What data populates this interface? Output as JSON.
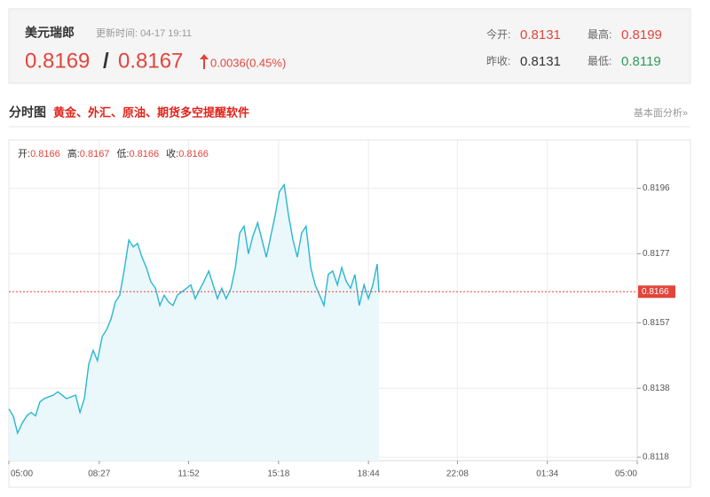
{
  "header": {
    "symbol": "美元瑞郎",
    "update_time": "更新时间: 04-17 19:11",
    "bid": 0.8169,
    "separator": "/",
    "ask": 0.8167,
    "change": "0.0036(0.45%)",
    "open_label": "今开:",
    "open": 0.8131,
    "high_label": "最高:",
    "high": 0.8199,
    "prev_close_label": "昨收:",
    "prev_close": 0.8131,
    "low_label": "最低:",
    "low": 0.8119
  },
  "section": {
    "title": "分时图",
    "promo": "黄金、外汇、原油、期货多空提醒软件",
    "link": "基本面分析»"
  },
  "chart_data": {
    "type": "line",
    "ohlc": [
      {
        "label": "开:",
        "value": 0.8166
      },
      {
        "label": "高:",
        "value": 0.8167
      },
      {
        "label": "低:",
        "value": 0.8166
      },
      {
        "label": "收:",
        "value": 0.8166
      }
    ],
    "x": [
      0,
      10,
      20,
      31,
      41,
      51,
      61,
      71,
      81,
      102,
      112,
      132,
      153,
      163,
      173,
      183,
      193,
      203,
      214,
      224,
      234,
      244,
      254,
      264,
      275,
      285,
      295,
      305,
      315,
      325,
      336,
      346,
      356,
      366,
      376,
      386,
      407,
      417,
      427,
      447,
      458,
      468,
      478,
      488,
      498,
      509,
      519,
      529,
      539,
      549,
      559,
      570,
      580,
      590,
      600,
      610,
      620,
      631,
      641,
      651,
      661,
      671,
      681,
      692,
      702,
      712,
      722,
      732,
      742,
      753,
      763,
      773,
      783,
      793,
      803,
      814,
      824,
      834,
      844,
      848
    ],
    "series": [
      {
        "color": "#29b6d0",
        "values": [
          0.8132,
          0.813,
          0.8125,
          0.8128,
          0.813,
          0.8131,
          0.813,
          0.8134,
          0.8135,
          0.8136,
          0.8137,
          0.8135,
          0.8136,
          0.8131,
          0.8135,
          0.8145,
          0.8149,
          0.8146,
          0.8153,
          0.8155,
          0.8158,
          0.8163,
          0.8165,
          0.8172,
          0.8181,
          0.8179,
          0.818,
          0.8176,
          0.8173,
          0.8169,
          0.8167,
          0.8162,
          0.8165,
          0.8163,
          0.8162,
          0.8165,
          0.8167,
          0.8168,
          0.8164,
          0.8169,
          0.8172,
          0.8168,
          0.8164,
          0.8167,
          0.8164,
          0.8167,
          0.8173,
          0.8183,
          0.8185,
          0.8177,
          0.8182,
          0.8186,
          0.8181,
          0.8176,
          0.8182,
          0.8188,
          0.8195,
          0.8197,
          0.8188,
          0.8181,
          0.8176,
          0.8183,
          0.8185,
          0.8173,
          0.8168,
          0.8165,
          0.8162,
          0.8171,
          0.8172,
          0.8168,
          0.8173,
          0.8169,
          0.8167,
          0.8171,
          0.8162,
          0.8168,
          0.8164,
          0.8168,
          0.8174,
          0.8166
        ]
      }
    ],
    "area_color": "#eaf8fb",
    "current_price": 0.8166,
    "current_color": "#e2453c",
    "xlim": [
      0,
      1440
    ],
    "xticks": [
      {
        "value": 0,
        "label": "05:00"
      },
      {
        "value": 207,
        "label": "08:27"
      },
      {
        "value": 412,
        "label": "11:52"
      },
      {
        "value": 618,
        "label": "15:18"
      },
      {
        "value": 824,
        "label": "18:44"
      },
      {
        "value": 1028,
        "label": "22:08"
      },
      {
        "value": 1234,
        "label": "01:34"
      },
      {
        "value": 1440,
        "label": "05:00"
      }
    ],
    "ylim": [
      0.8117,
      0.821
    ],
    "yticks": [
      0.8118,
      0.8138,
      0.8157,
      0.8177,
      0.8196
    ],
    "grid": true
  }
}
